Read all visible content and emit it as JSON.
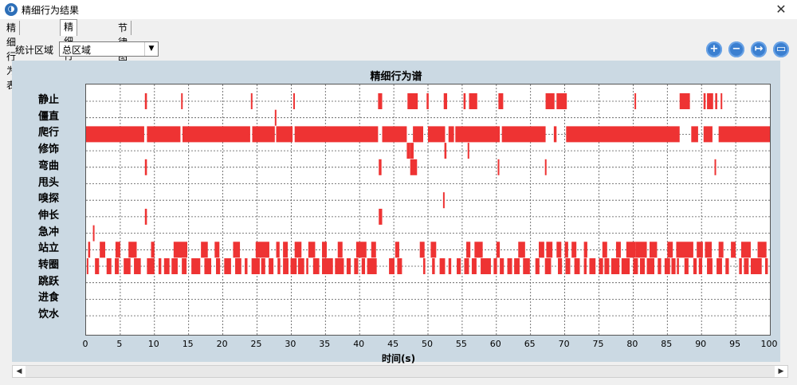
{
  "window": {
    "title": "精细行为结果",
    "close_glyph": "✕"
  },
  "tabs": [
    {
      "label": "精细行为表",
      "active": false
    },
    {
      "label": "精细行为谱",
      "active": true
    },
    {
      "label": "节律图",
      "active": false
    }
  ],
  "toolbar": {
    "region_label": "统计区域",
    "region_value": "总区域",
    "buttons": [
      {
        "name": "zoom-in-icon",
        "glyph": "+"
      },
      {
        "name": "zoom-out-icon",
        "glyph": "−"
      },
      {
        "name": "reset-zoom-icon",
        "glyph": "↦"
      },
      {
        "name": "save-icon",
        "glyph": "▭"
      }
    ]
  },
  "colors": {
    "bar": "#ee3333",
    "panel": "#cbd9e3"
  },
  "chart_data": {
    "type": "event-raster",
    "title": "精细行为谱",
    "xlabel": "时间(s)",
    "ylabel": "",
    "xlim": [
      0,
      100
    ],
    "xticks": [
      0,
      5,
      10,
      15,
      20,
      25,
      30,
      35,
      40,
      45,
      50,
      55,
      60,
      65,
      70,
      75,
      80,
      85,
      90,
      95,
      100
    ],
    "grid": true,
    "categories": [
      "静止",
      "僵直",
      "爬行",
      "修饰",
      "弯曲",
      "甩头",
      "嗅探",
      "伸长",
      "急冲",
      "站立",
      "转圈",
      "跳跃",
      "进食",
      "饮水"
    ],
    "events": {
      "静止": [
        [
          8.6,
          8.9
        ],
        [
          13.9,
          14.1
        ],
        [
          24.1,
          24.3
        ],
        [
          30.3,
          30.5
        ],
        [
          42.7,
          43.3
        ],
        [
          47.0,
          48.5
        ],
        [
          49.8,
          50.1
        ],
        [
          52.3,
          52.8
        ],
        [
          55.2,
          55.5
        ],
        [
          56.0,
          57.2
        ],
        [
          60.3,
          61.0
        ],
        [
          67.2,
          68.5
        ],
        [
          68.8,
          70.3
        ],
        [
          80.2,
          80.4
        ],
        [
          86.8,
          88.3
        ],
        [
          90.3,
          90.6
        ],
        [
          90.8,
          91.7
        ],
        [
          92.0,
          92.3
        ],
        [
          92.8,
          93.0
        ]
      ],
      "僵直": [
        [
          27.6,
          27.8
        ]
      ],
      "爬行": [
        [
          0,
          8.5
        ],
        [
          8.9,
          13.8
        ],
        [
          14.1,
          24.0
        ],
        [
          24.3,
          27.6
        ],
        [
          27.8,
          30.2
        ],
        [
          30.5,
          42.7
        ],
        [
          43.3,
          46.9
        ],
        [
          47.8,
          49.3
        ],
        [
          50.0,
          52.5
        ],
        [
          53.0,
          53.8
        ],
        [
          54.0,
          60.5
        ],
        [
          60.8,
          67.2
        ],
        [
          68.4,
          68.8
        ],
        [
          70.2,
          86.8
        ],
        [
          88.5,
          89.5
        ],
        [
          90.3,
          91.6
        ],
        [
          92.5,
          100
        ]
      ],
      "修饰": [
        [
          46.9,
          47.4
        ],
        [
          47.4,
          47.9
        ],
        [
          52.4,
          52.7
        ],
        [
          55.8,
          56.0
        ]
      ],
      "弯曲": [
        [
          8.6,
          8.9
        ],
        [
          42.8,
          43.2
        ],
        [
          47.4,
          48.4
        ],
        [
          60.2,
          60.4
        ],
        [
          67.1,
          67.3
        ],
        [
          91.9,
          92.1
        ]
      ],
      "甩头": [],
      "嗅探": [
        [
          52.2,
          52.4
        ]
      ],
      "伸长": [
        [
          8.6,
          8.9
        ],
        [
          42.8,
          43.3
        ]
      ],
      "急冲": [
        [
          1.0,
          1.2
        ]
      ],
      "站立": [
        [
          0.3,
          0.6
        ],
        [
          2.0,
          2.8
        ],
        [
          4.3,
          5.0
        ],
        [
          6.2,
          7.4
        ],
        [
          9.5,
          10.0
        ],
        [
          12.8,
          14.8
        ],
        [
          16.8,
          17.8
        ],
        [
          18.8,
          19.5
        ],
        [
          21.5,
          22.5
        ],
        [
          24.8,
          26.8
        ],
        [
          27.8,
          28.3
        ],
        [
          28.8,
          29.5
        ],
        [
          30.5,
          31.5
        ],
        [
          32.5,
          33.5
        ],
        [
          34.5,
          35.2
        ],
        [
          36.8,
          37.5
        ],
        [
          39.5,
          41.0
        ],
        [
          41.7,
          42.4
        ],
        [
          45.2,
          45.8
        ],
        [
          48.8,
          49.5
        ],
        [
          50.4,
          51.2
        ],
        [
          55.6,
          56.2
        ],
        [
          56.8,
          58.0
        ],
        [
          60.0,
          60.5
        ],
        [
          63.2,
          64.2
        ],
        [
          66.2,
          67.0
        ],
        [
          67.3,
          68.2
        ],
        [
          68.8,
          69.5
        ],
        [
          70.0,
          70.5
        ],
        [
          71.0,
          71.7
        ],
        [
          72.8,
          73.3
        ],
        [
          75.5,
          76.2
        ],
        [
          77.5,
          78.2
        ],
        [
          79.0,
          80.4
        ],
        [
          80.4,
          82.0
        ],
        [
          82.4,
          83.5
        ],
        [
          85.0,
          85.8
        ],
        [
          86.3,
          88.8
        ],
        [
          89.3,
          90.2
        ],
        [
          90.5,
          91.5
        ],
        [
          92.5,
          93.2
        ],
        [
          94.3,
          95.0
        ],
        [
          95.8,
          97.2
        ],
        [
          98.2,
          99.5
        ]
      ],
      "转圈": [
        [
          0.1,
          0.2
        ],
        [
          1.3,
          1.9
        ],
        [
          3.0,
          3.7
        ],
        [
          4.2,
          4.8
        ],
        [
          5.5,
          6.5
        ],
        [
          7.0,
          8.0
        ],
        [
          8.9,
          10.0
        ],
        [
          10.6,
          11.0
        ],
        [
          11.4,
          12.2
        ],
        [
          12.5,
          13.4
        ],
        [
          14.0,
          14.7
        ],
        [
          15.4,
          16.7
        ],
        [
          17.3,
          18.3
        ],
        [
          19.0,
          19.6
        ],
        [
          20.2,
          21.2
        ],
        [
          21.8,
          22.7
        ],
        [
          23.2,
          23.6
        ],
        [
          24.2,
          25.4
        ],
        [
          25.6,
          26.2
        ],
        [
          26.7,
          27.4
        ],
        [
          28.0,
          28.4
        ],
        [
          28.8,
          29.6
        ],
        [
          29.9,
          30.8
        ],
        [
          31.0,
          31.9
        ],
        [
          32.2,
          32.5
        ],
        [
          33.2,
          34.1
        ],
        [
          34.5,
          36.1
        ],
        [
          36.4,
          37.7
        ],
        [
          38.1,
          38.7
        ],
        [
          39.2,
          39.8
        ],
        [
          40.3,
          40.8
        ],
        [
          41.1,
          42.5
        ],
        [
          44.3,
          45.1
        ],
        [
          45.5,
          46.2
        ],
        [
          49.3,
          49.6
        ],
        [
          50.6,
          51.0
        ],
        [
          51.7,
          52.5
        ],
        [
          53.0,
          53.4
        ],
        [
          54.2,
          54.8
        ],
        [
          55.3,
          56.0
        ],
        [
          56.4,
          57.1
        ],
        [
          57.7,
          59.2
        ],
        [
          59.6,
          60.1
        ],
        [
          60.5,
          61.1
        ],
        [
          61.6,
          62.3
        ],
        [
          62.6,
          63.4
        ],
        [
          63.9,
          64.9
        ],
        [
          65.7,
          66.3
        ],
        [
          67.1,
          68.0
        ],
        [
          69.0,
          69.6
        ],
        [
          70.1,
          70.8
        ],
        [
          71.4,
          72.2
        ],
        [
          72.8,
          73.2
        ],
        [
          73.6,
          74.5
        ],
        [
          75.0,
          75.6
        ],
        [
          75.8,
          76.5
        ],
        [
          76.8,
          78.0
        ],
        [
          78.3,
          79.5
        ],
        [
          80.0,
          80.7
        ],
        [
          81.0,
          81.7
        ],
        [
          82.0,
          83.1
        ],
        [
          83.6,
          84.1
        ],
        [
          84.6,
          85.4
        ],
        [
          85.6,
          86.2
        ],
        [
          86.4,
          86.7
        ],
        [
          87.5,
          88.1
        ],
        [
          88.8,
          89.3
        ],
        [
          89.6,
          90.1
        ],
        [
          90.8,
          91.6
        ],
        [
          92.2,
          93.0
        ],
        [
          93.5,
          94.0
        ],
        [
          95.5,
          95.9
        ],
        [
          96.2,
          96.9
        ],
        [
          97.2,
          98.8
        ],
        [
          99.3,
          99.7
        ]
      ],
      "跳跃": [],
      "进食": [],
      "饮水": []
    }
  },
  "scrollbar": {
    "left_glyph": "◀",
    "right_glyph": "▶"
  }
}
